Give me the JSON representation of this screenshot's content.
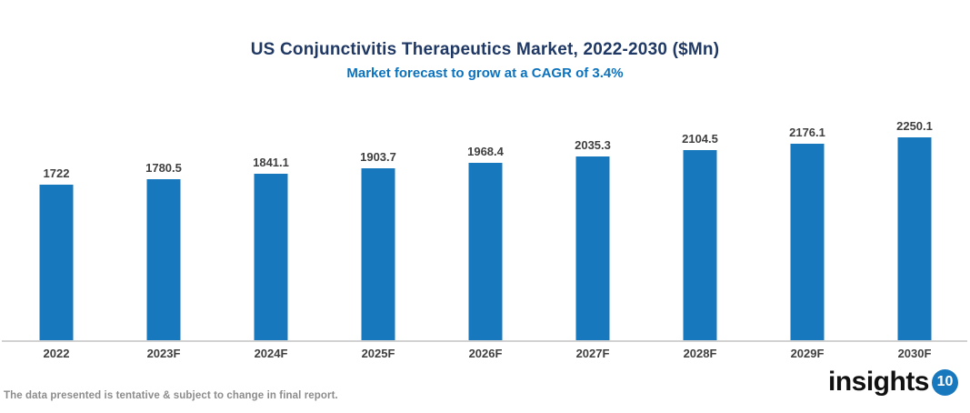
{
  "chart_data": {
    "type": "bar",
    "title": "US Conjunctivitis Therapeutics Market, 2022-2030 ($Mn)",
    "subtitle": "Market forecast to grow at a CAGR of 3.4%",
    "categories": [
      "2022",
      "2023F",
      "2024F",
      "2025F",
      "2026F",
      "2027F",
      "2028F",
      "2029F",
      "2030F"
    ],
    "values": [
      1722,
      1780.5,
      1841.1,
      1903.7,
      1968.4,
      2035.3,
      2104.5,
      2176.1,
      2250.1
    ],
    "value_labels": [
      "1722",
      "1780.5",
      "1841.1",
      "1903.7",
      "1968.4",
      "2035.3",
      "2104.5",
      "2176.1",
      "2250.1"
    ],
    "xlabel": "",
    "ylabel": "",
    "ylim": [
      0,
      2400
    ],
    "grid": false,
    "legend_position": "none",
    "bar_color": "#1878BE",
    "title_color": "#1F3864",
    "subtitle_color": "#0B72BE",
    "label_color": "#3F3F3F"
  },
  "footer": {
    "note": "The data presented is tentative & subject to change in final report."
  },
  "logo": {
    "text": "insights",
    "badge": "10",
    "badge_color": "#1878BE"
  }
}
